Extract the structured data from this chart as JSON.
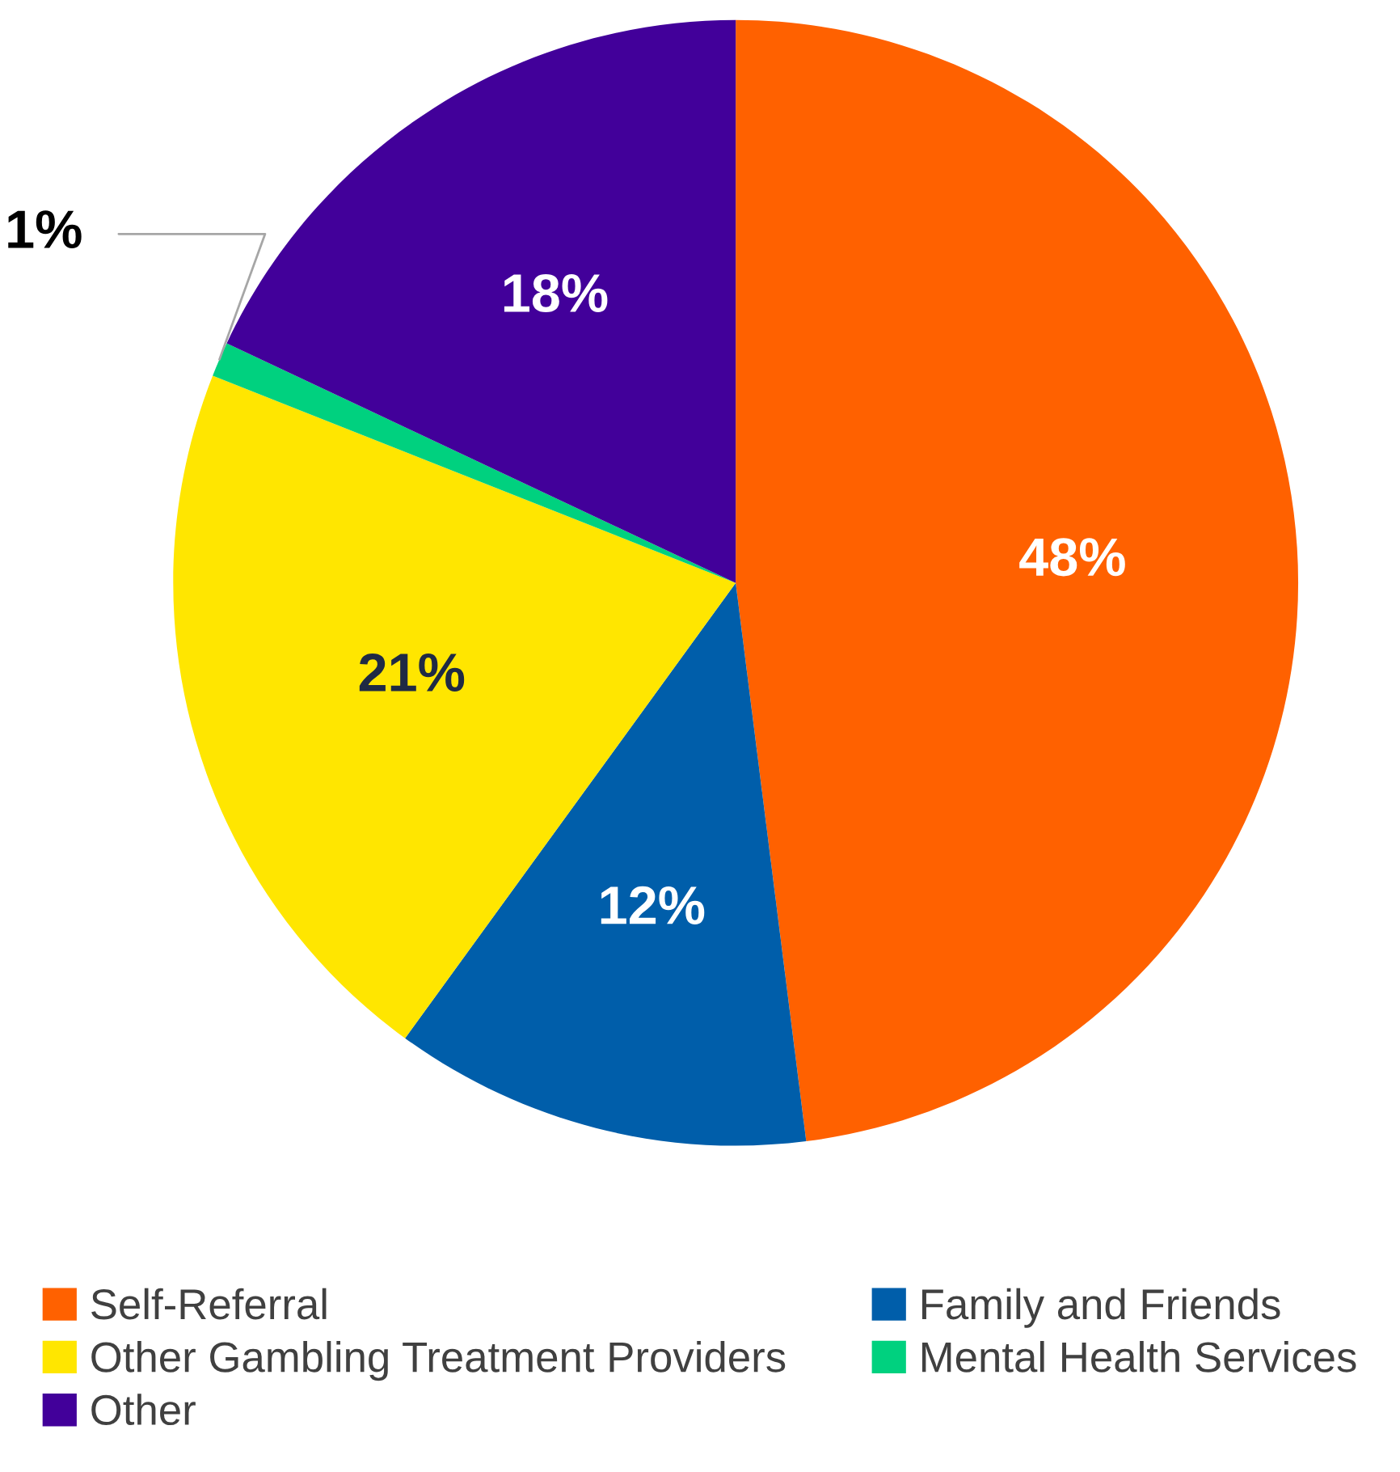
{
  "chart_data": {
    "type": "pie",
    "categories": [
      "Self-Referral",
      "Family and Friends",
      "Other Gambling Treatment Providers",
      "Mental Health Services",
      "Other"
    ],
    "values": [
      48,
      12,
      21,
      1,
      18
    ],
    "colors": [
      "#ff6100",
      "#005eaa",
      "#ffe600",
      "#00d17f",
      "#42009a"
    ],
    "value_labels": [
      "48%",
      "12%",
      "21%",
      "1%",
      "18%"
    ],
    "legend": "bottom"
  }
}
